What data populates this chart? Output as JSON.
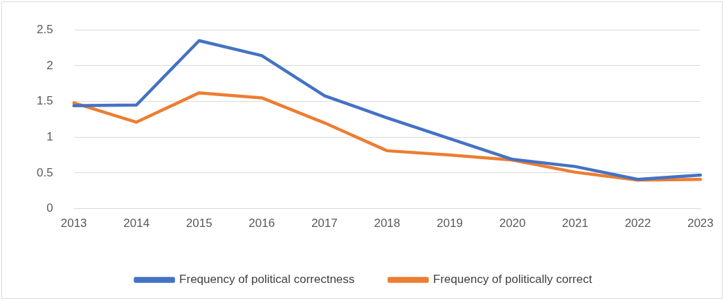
{
  "chart_data": {
    "type": "line",
    "categories": [
      "2013",
      "2014",
      "2015",
      "2016",
      "2017",
      "2018",
      "2019",
      "2020",
      "2021",
      "2022",
      "2023"
    ],
    "series": [
      {
        "name": "Frequency of political correctness",
        "color": "#4472c4",
        "values": [
          1.44,
          1.45,
          2.35,
          2.14,
          1.58,
          1.27,
          0.98,
          0.69,
          0.59,
          0.41,
          0.47
        ]
      },
      {
        "name": "Frequency of politically correct",
        "color": "#ed7d31",
        "values": [
          1.48,
          1.21,
          1.62,
          1.55,
          1.2,
          0.81,
          0.75,
          0.68,
          0.51,
          0.4,
          0.41
        ]
      }
    ],
    "ylim": [
      0,
      2.5
    ],
    "yticks": [
      0,
      0.5,
      1,
      1.5,
      2,
      2.5
    ],
    "grid": "y",
    "legend": "bottom",
    "marker": "none",
    "line_style": "solid"
  }
}
